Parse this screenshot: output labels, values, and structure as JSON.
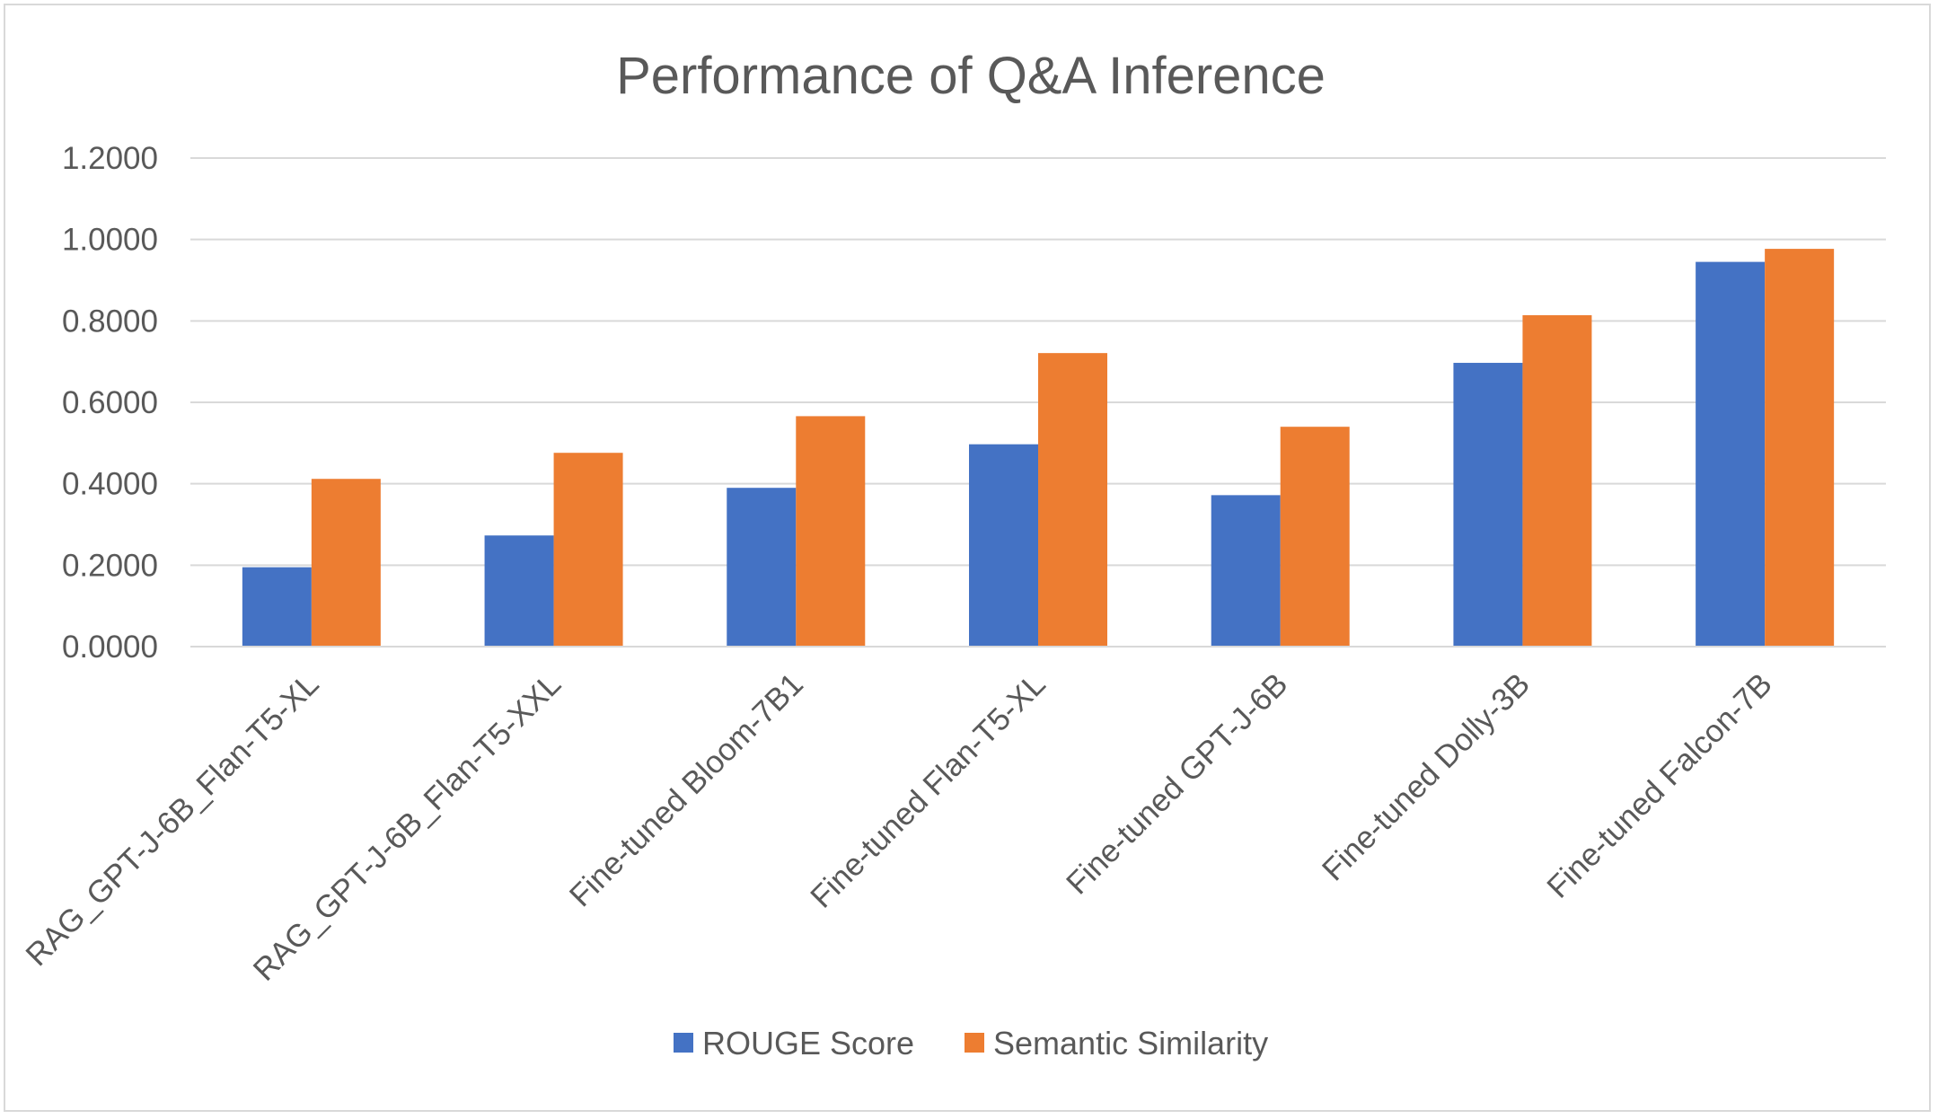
{
  "chart_data": {
    "type": "bar",
    "title": "Performance of Q&A Inference",
    "xlabel": "",
    "ylabel": "",
    "ylim": [
      0,
      1.2
    ],
    "yticks": [
      0.0,
      0.2,
      0.4,
      0.6,
      0.8,
      1.0,
      1.2
    ],
    "ytick_labels": [
      "0.0000",
      "0.2000",
      "0.4000",
      "0.6000",
      "0.8000",
      "1.0000",
      "1.2000"
    ],
    "grid": true,
    "legend_position": "bottom",
    "categories": [
      "RAG_GPT-J-6B_Flan-T5-XL",
      "RAG_GPT-J-6B_Flan-T5-XXL",
      "Fine-tuned Bloom-7B1",
      "Fine-tuned Flan-T5-XL",
      "Fine-tuned GPT-J-6B",
      "Fine-tuned Dolly-3B",
      "Fine-tuned Falcon-7B"
    ],
    "series": [
      {
        "name": "ROUGE Score",
        "color": "#4472c4",
        "values": [
          0.195,
          0.273,
          0.39,
          0.497,
          0.372,
          0.697,
          0.945
        ]
      },
      {
        "name": "Semantic Similarity",
        "color": "#ed7d31",
        "values": [
          0.412,
          0.476,
          0.566,
          0.721,
          0.54,
          0.814,
          0.977
        ]
      }
    ]
  }
}
